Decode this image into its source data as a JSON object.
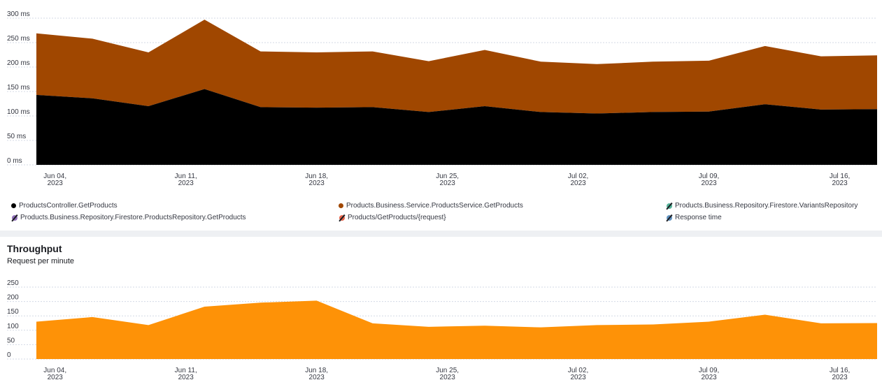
{
  "chart_data": [
    {
      "type": "area",
      "stacked": true,
      "title": "",
      "ylabel": "",
      "xlabel": "",
      "ylim": [
        0,
        300
      ],
      "yticks": [
        "0 ms",
        "50 ms",
        "100 ms",
        "150 ms",
        "200 ms",
        "250 ms",
        "300 ms"
      ],
      "ytick_values": [
        0,
        50,
        100,
        150,
        200,
        250,
        300
      ],
      "xtick_labels": [
        [
          "Jun 04,",
          "2023"
        ],
        [
          "Jun 11,",
          "2023"
        ],
        [
          "Jun 18,",
          "2023"
        ],
        [
          "Jun 25,",
          "2023"
        ],
        [
          "Jul 02,",
          "2023"
        ],
        [
          "Jul 09,",
          "2023"
        ],
        [
          "Jul 16,",
          "2023"
        ]
      ],
      "xtick_day_index": [
        1,
        8,
        15,
        22,
        29,
        36,
        43
      ],
      "x_day_index": [
        0,
        3,
        6,
        9,
        12,
        15,
        18,
        21,
        24,
        27,
        30,
        33,
        36,
        39,
        42,
        45
      ],
      "grid": "horizontal-dashed",
      "legend_placement": "bottom",
      "series": [
        {
          "name": "ProductsController.GetProducts",
          "color": "#000000",
          "values": [
            143,
            136,
            120,
            155,
            118,
            117,
            118,
            108,
            120,
            108,
            105,
            108,
            109,
            124,
            113,
            114
          ]
        },
        {
          "name": "Products.Business.Service.ProductsService.GetProducts",
          "color": "#a04700",
          "values": [
            126,
            122,
            110,
            142,
            114,
            113,
            114,
            104,
            115,
            103,
            101,
            103,
            104,
            119,
            109,
            110
          ]
        }
      ],
      "legend": [
        {
          "label": "ProductsController.GetProducts",
          "color": "#000000",
          "hidden": false
        },
        {
          "label": "Products.Business.Service.ProductsService.GetProducts",
          "color": "#a04700",
          "hidden": false
        },
        {
          "label": "Products.Business.Repository.Firestore.VariantsRepository",
          "color": "#54b399",
          "hidden": true
        },
        {
          "label": "Products.Business.Repository.Firestore.ProductsRepository.GetProducts",
          "color": "#9170b8",
          "hidden": true
        },
        {
          "label": "Products/GetProducts/{request}",
          "color": "#e7664c",
          "hidden": true
        },
        {
          "label": "Response time",
          "color": "#6092c0",
          "hidden": true
        }
      ]
    },
    {
      "type": "area",
      "title": "Throughput",
      "subtitle": "Request per minute",
      "ylabel": "",
      "xlabel": "",
      "ylim": [
        0,
        250
      ],
      "yticks": [
        "0",
        "50",
        "100",
        "150",
        "200",
        "250"
      ],
      "ytick_values": [
        0,
        50,
        100,
        150,
        200,
        250
      ],
      "xtick_labels": [
        [
          "Jun 04,",
          "2023"
        ],
        [
          "Jun 11,",
          "2023"
        ],
        [
          "Jun 18,",
          "2023"
        ],
        [
          "Jun 25,",
          "2023"
        ],
        [
          "Jul 02,",
          "2023"
        ],
        [
          "Jul 09,",
          "2023"
        ],
        [
          "Jul 16,",
          "2023"
        ]
      ],
      "xtick_day_index": [
        1,
        8,
        15,
        22,
        29,
        36,
        43
      ],
      "x_day_index": [
        0,
        3,
        6,
        9,
        12,
        15,
        18,
        21,
        24,
        27,
        30,
        33,
        36,
        39,
        42,
        45
      ],
      "grid": "horizontal-dashed",
      "series": [
        {
          "name": "",
          "color": "#fe9207",
          "values": [
            130,
            146,
            118,
            182,
            196,
            203,
            124,
            112,
            116,
            110,
            118,
            120,
            130,
            154,
            124,
            125
          ]
        }
      ]
    }
  ]
}
